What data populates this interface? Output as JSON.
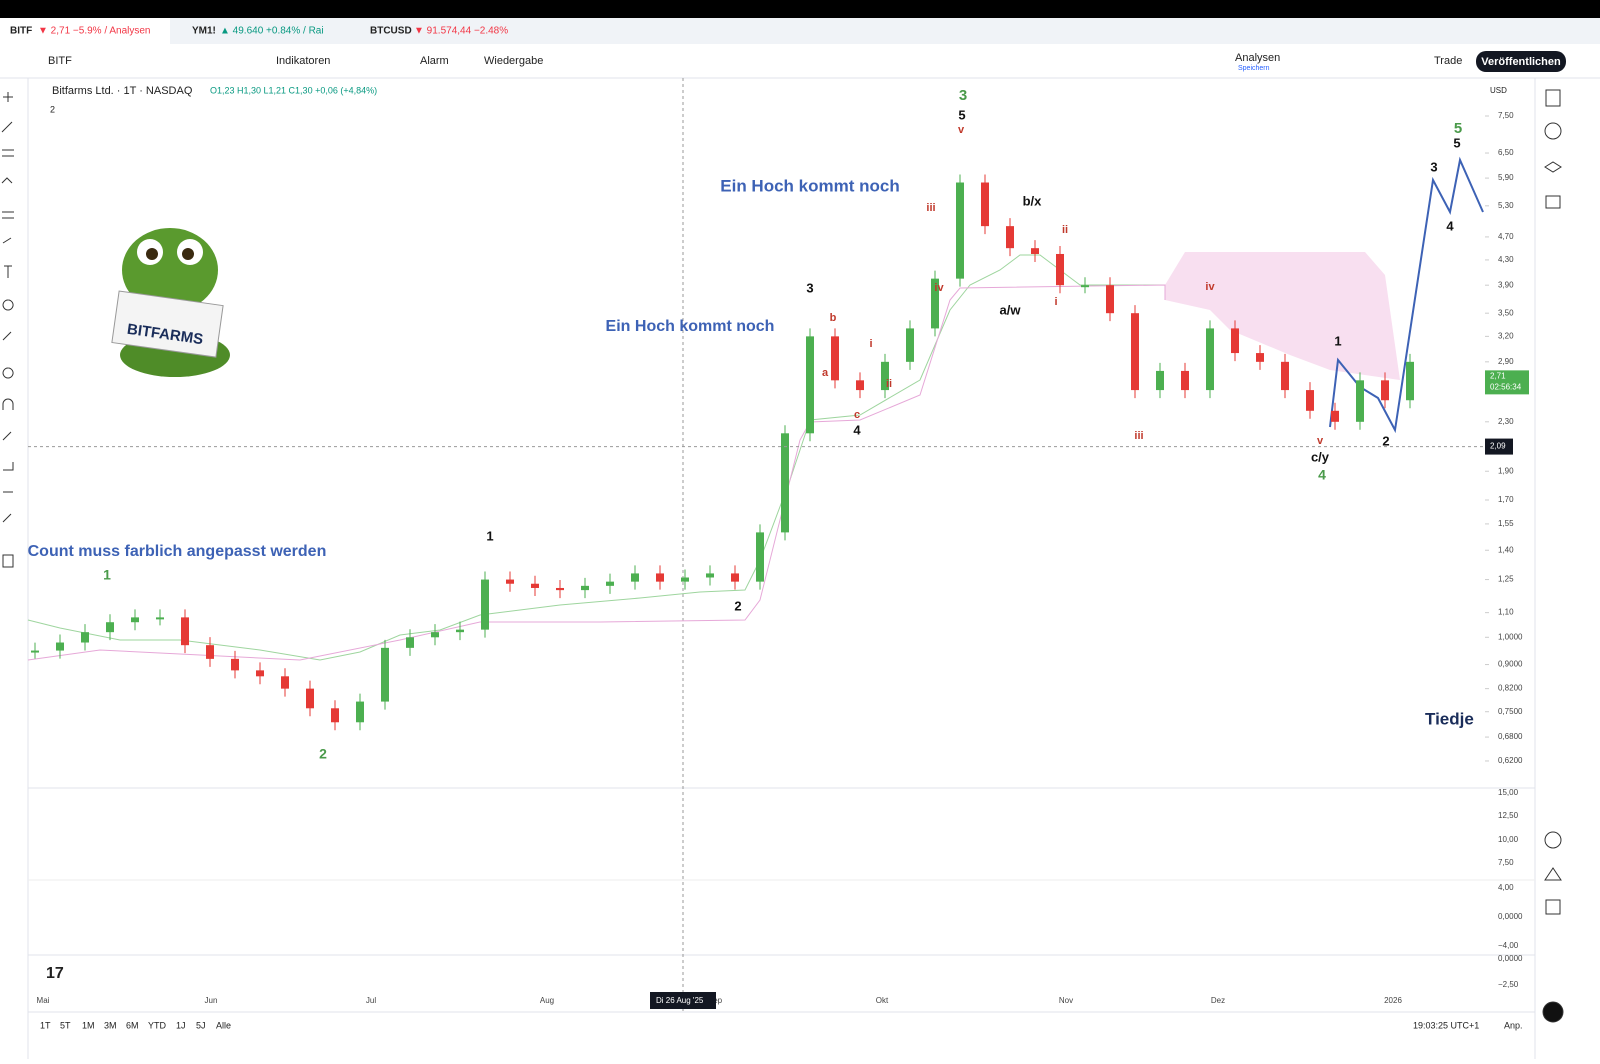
{
  "tabs": [
    {
      "symbol": "BITF",
      "quote": "▼ 2,71 −5.9% / Analysen"
    },
    {
      "symbol": "YM1!",
      "quote": "▲ 49.640 +0.84% / Rai"
    },
    {
      "symbol": "BTCUSD",
      "quote": "▼ 91.574,44 −2.48%"
    }
  ],
  "toolbar": {
    "symbol": "BITF",
    "indicators": "Indikatoren",
    "alarm": "Alarm",
    "replay": "Wiedergabe",
    "layout": "Analysen",
    "save": "Speichern",
    "trade": "Trade",
    "publish": "Veröffentlichen"
  },
  "legend": {
    "title": "Bitfarms Ltd. · 1T · NASDAQ",
    "ohlc": "O1,23 H1,30 L1,21 C1,30 +0,06 (+4,84%)",
    "collapse": "2"
  },
  "chart": {
    "currency": "USD",
    "log_scale": true,
    "ylim": [
      0.565,
      8.62
    ],
    "yticks": [
      {
        "value": 7.5,
        "label": "7,50"
      },
      {
        "value": 6.5,
        "label": "6,50"
      },
      {
        "value": 5.9,
        "label": "5,90"
      },
      {
        "value": 5.3,
        "label": "5,30"
      },
      {
        "value": 4.7,
        "label": "4,70"
      },
      {
        "value": 4.3,
        "label": "4,30"
      },
      {
        "value": 3.9,
        "label": "3,90"
      },
      {
        "value": 3.5,
        "label": "3,50"
      },
      {
        "value": 3.2,
        "label": "3,20"
      },
      {
        "value": 2.9,
        "label": "2,90"
      },
      {
        "value": 2.3,
        "label": "2,30"
      },
      {
        "value": 1.9,
        "label": "1,90"
      },
      {
        "value": 1.7,
        "label": "1,70"
      },
      {
        "value": 1.55,
        "label": "1,55"
      },
      {
        "value": 1.4,
        "label": "1,40"
      },
      {
        "value": 1.25,
        "label": "1,25"
      },
      {
        "value": 1.1,
        "label": "1,10"
      },
      {
        "value": 1,
        "label": "1,0000"
      },
      {
        "value": 0.9,
        "label": "0,9000"
      },
      {
        "value": 0.82,
        "label": "0,8200"
      },
      {
        "value": 0.75,
        "label": "0,7500"
      },
      {
        "value": 0.68,
        "label": "0,6800"
      },
      {
        "value": 0.62,
        "label": "0,6200"
      }
    ],
    "xticks": [
      "Mai",
      "Jun",
      "Jul",
      "Aug",
      "Sep",
      "Okt",
      "Nov",
      "Dez",
      "2026"
    ],
    "closes": [
      0.95,
      0.98,
      1.02,
      1.06,
      1.08,
      1.08,
      0.97,
      0.92,
      0.88,
      0.86,
      0.82,
      0.76,
      0.72,
      0.78,
      0.96,
      1.0,
      1.02,
      1.03,
      1.25,
      1.23,
      1.21,
      1.2,
      1.22,
      1.24,
      1.28,
      1.24,
      1.26,
      1.28,
      1.24,
      1.5,
      2.2,
      3.2,
      2.7,
      2.6,
      2.9,
      3.3,
      4.0,
      5.8,
      4.9,
      4.5,
      4.4,
      3.9,
      3.9,
      3.5,
      2.6,
      2.8,
      2.6,
      3.3,
      3.0,
      2.9,
      2.6,
      2.4,
      2.3,
      2.7,
      2.5,
      2.9
    ],
    "up_color": "#4caf50",
    "down_color": "#e53935",
    "last_price": {
      "value": 2.71,
      "label": "2,71",
      "countdown": "02:56:34"
    },
    "crosshair": {
      "value": 2.09,
      "label": "2,09",
      "date": "Di 26 Aug '25"
    },
    "annotations": [
      {
        "text": "Ein Hoch kommt noch",
        "color": "#3d62b5"
      },
      {
        "text": "Ein Hoch kommt noch",
        "color": "#3d62b5"
      },
      {
        "text": "Count muss farblich angepasst werden",
        "color": "#3d62b5"
      },
      {
        "text": "1",
        "color": "#4a9a4a"
      },
      {
        "text": "2",
        "color": "#4a9a4a"
      },
      {
        "text": "1",
        "color": "#111111"
      },
      {
        "text": "2",
        "color": "#111111"
      },
      {
        "text": "3",
        "color": "#111111"
      },
      {
        "text": "4",
        "color": "#111111"
      },
      {
        "text": "3",
        "color": "#4a9a4a"
      },
      {
        "text": "5",
        "color": "#111111"
      },
      {
        "text": "b/x",
        "color": "#111111"
      },
      {
        "text": "a/w",
        "color": "#111111"
      },
      {
        "text": "c/y",
        "color": "#111111"
      },
      {
        "text": "4",
        "color": "#4a9a4a"
      },
      {
        "text": "1",
        "color": "#111111"
      },
      {
        "text": "2",
        "color": "#111111"
      },
      {
        "text": "3",
        "color": "#111111"
      },
      {
        "text": "4",
        "color": "#111111"
      },
      {
        "text": "5",
        "color": "#4a9a4a"
      },
      {
        "text": "5",
        "color": "#111111"
      },
      {
        "text": "iii",
        "color": "#c0392b"
      },
      {
        "text": "iv",
        "color": "#c0392b"
      },
      {
        "text": "i",
        "color": "#c0392b"
      },
      {
        "text": "ii",
        "color": "#c0392b"
      },
      {
        "text": "b",
        "color": "#c0392b"
      },
      {
        "text": "a",
        "color": "#c0392b"
      },
      {
        "text": "c",
        "color": "#c0392b"
      },
      {
        "text": "ii",
        "color": "#c0392b"
      },
      {
        "text": "i",
        "color": "#c0392b"
      },
      {
        "text": "iv",
        "color": "#c0392b"
      },
      {
        "text": "iii",
        "color": "#c0392b"
      },
      {
        "text": "v",
        "color": "#c0392b"
      },
      {
        "text": "v",
        "color": "#c0392b"
      }
    ],
    "indicator_axis": [
      "15,00",
      "12,50",
      "10,00",
      "7,50",
      "4,00",
      "0,0000",
      "−4,00",
      "0,0000",
      "−2,50"
    ]
  },
  "ranges": [
    "1T",
    "5T",
    "1M",
    "3M",
    "6M",
    "YTD",
    "1J",
    "5J",
    "Alle"
  ],
  "clock": "19:03:25 UTC+1",
  "auto": "Anp.",
  "brand": "Tiedje",
  "logo_sign": "BITFARMS"
}
